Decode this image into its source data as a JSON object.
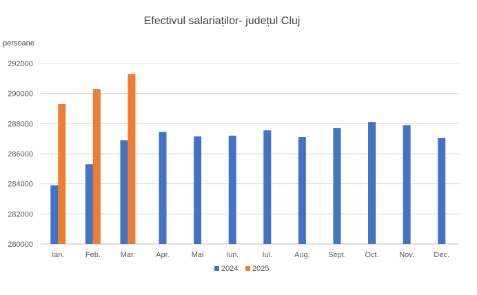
{
  "chart_data": {
    "type": "bar",
    "title": "Efectivul salariaților- județul Cluj",
    "ylabel": "persoane",
    "xlabel": "",
    "categories": [
      "Ian.",
      "Feb.",
      "Mar.",
      "Apr.",
      "Mai",
      "Iun.",
      "Iul.",
      "Aug.",
      "Sept.",
      "Oct.",
      "Nov.",
      "Dec."
    ],
    "series": [
      {
        "name": "2024",
        "color": "#4472C4",
        "values": [
          283900,
          285300,
          286900,
          287450,
          287150,
          287200,
          287550,
          287100,
          287700,
          288100,
          287900,
          287050
        ]
      },
      {
        "name": "2025",
        "color": "#ED7D31",
        "values": [
          289300,
          290300,
          291300,
          null,
          null,
          null,
          null,
          null,
          null,
          null,
          null,
          null
        ]
      }
    ],
    "ylim": [
      280000,
      292000
    ],
    "yticks": [
      280000,
      282000,
      284000,
      286000,
      288000,
      290000,
      292000
    ],
    "grid": true,
    "legend_position": "bottom"
  }
}
